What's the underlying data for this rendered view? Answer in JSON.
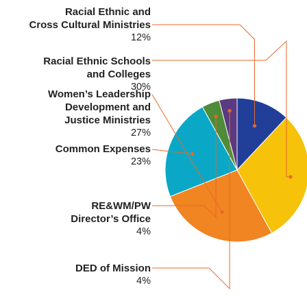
{
  "chart_data": {
    "type": "pie",
    "title": "",
    "slices": [
      {
        "label": "Racial Ethnic and\nCross Cultural Ministries",
        "pct_text": "12%",
        "value": 12,
        "color": "#213f99"
      },
      {
        "label": "Racial Ethnic Schools\nand Colleges",
        "pct_text": "30%",
        "value": 30,
        "color": "#f6c20a"
      },
      {
        "label": "Women’s Leadership\nDevelopment and\nJustice Ministries",
        "pct_text": "27%",
        "value": 27,
        "color": "#f08522"
      },
      {
        "label": "Common Expenses",
        "pct_text": "23%",
        "value": 23,
        "color": "#0aa8c6"
      },
      {
        "label": "RE&WM/PW\nDirector’s Office",
        "pct_text": "4%",
        "value": 4,
        "color": "#4e8c3a"
      },
      {
        "label": "DED of Mission",
        "pct_text": "4%",
        "value": 4,
        "color": "#5a3a80"
      }
    ],
    "callout_color": "#e8672a"
  }
}
